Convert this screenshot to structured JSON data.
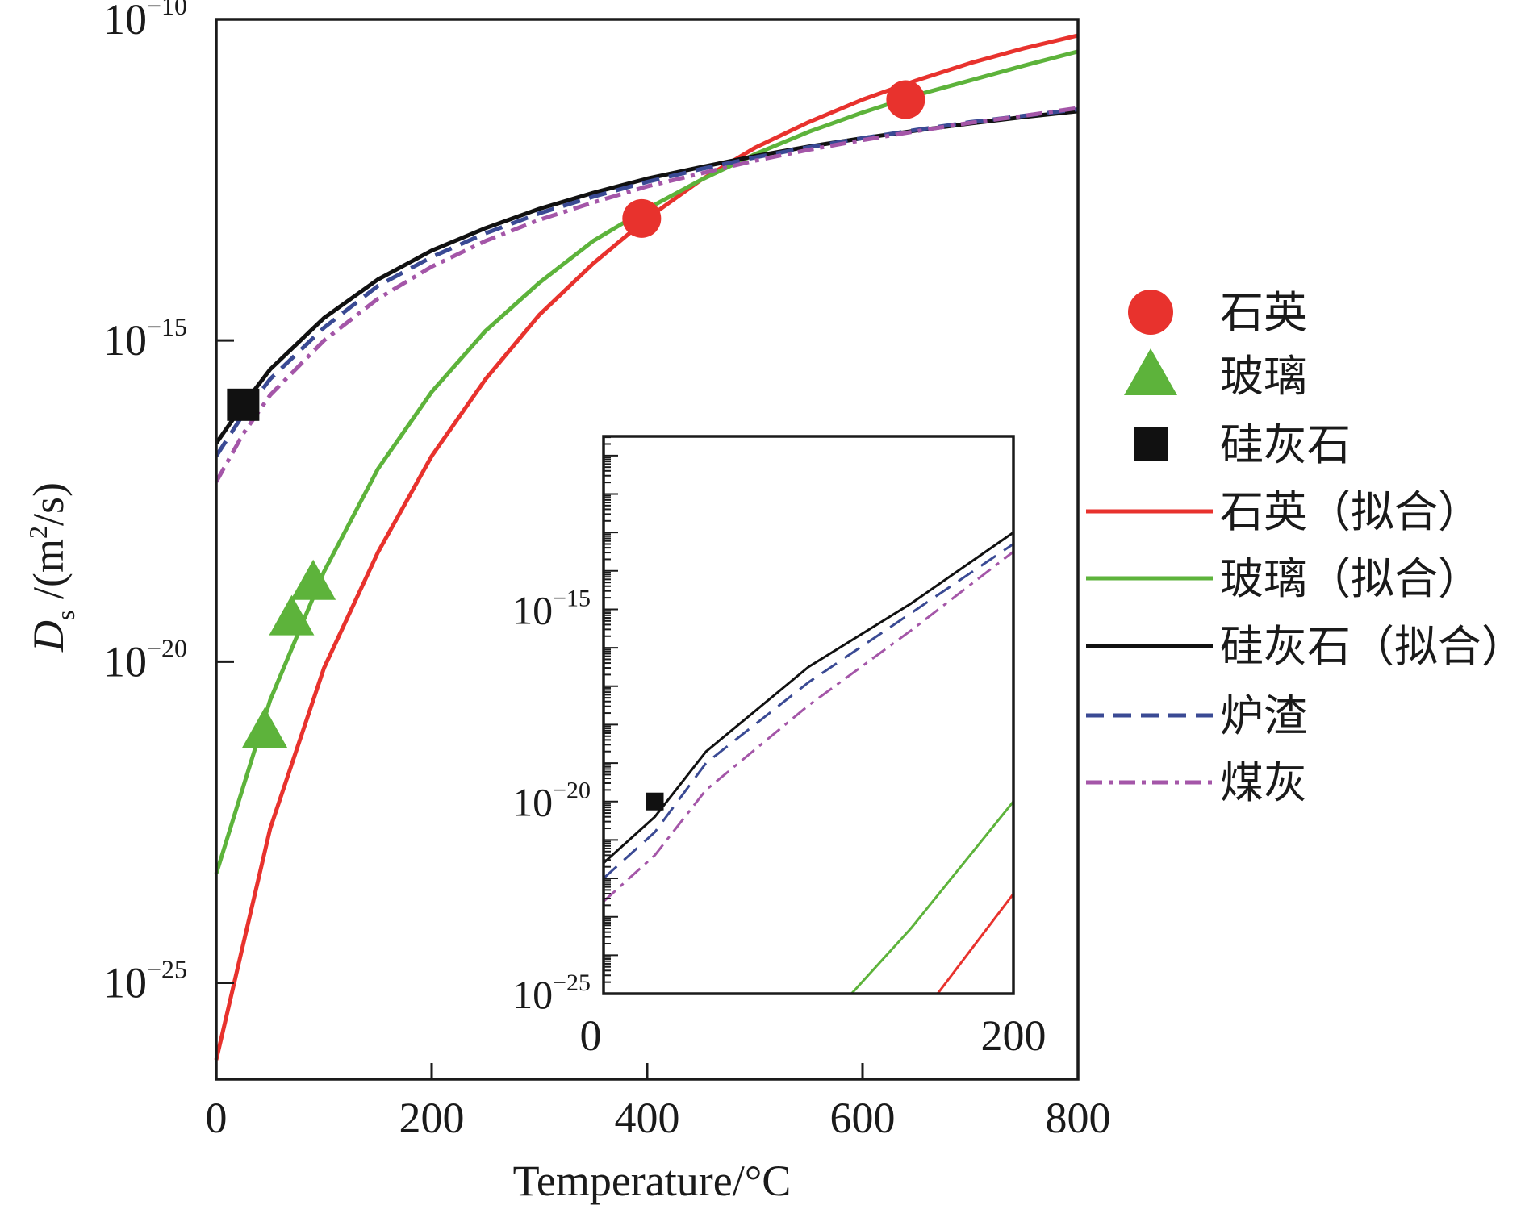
{
  "chart_data": [
    {
      "id": "main",
      "type": "line",
      "xlabel": "Temperature/°C",
      "ylabel_symbol": "D",
      "ylabel_subscript": "s",
      "ylabel_unit_prefix": " /(m",
      "ylabel_unit_sup": "2",
      "ylabel_unit_suffix": "/s)",
      "y_scale": "log",
      "xlim": [
        0,
        800
      ],
      "ylim_exp": [
        -26.5,
        -10
      ],
      "xticks": [
        0,
        200,
        400,
        600,
        800
      ],
      "xtick_labels": [
        "0",
        "200",
        "400",
        "600",
        "800"
      ],
      "yticks_exp": [
        -25,
        -20,
        -15,
        -10
      ],
      "ytick_base": "10",
      "ytick_exps": [
        "−25",
        "−20",
        "−15",
        "−10"
      ],
      "series": [
        {
          "name": "石英（拟合）",
          "color": "#e8322d",
          "style": "solid",
          "x": [
            0,
            50,
            100,
            150,
            200,
            250,
            300,
            350,
            400,
            450,
            500,
            550,
            600,
            650,
            700,
            750,
            800
          ],
          "y_exp": [
            -26.2,
            -22.6,
            -20.1,
            -18.3,
            -16.8,
            -15.6,
            -14.6,
            -13.8,
            -13.1,
            -12.5,
            -12.0,
            -11.6,
            -11.25,
            -10.95,
            -10.68,
            -10.45,
            -10.25
          ]
        },
        {
          "name": "玻璃（拟合）",
          "color": "#5db33b",
          "style": "solid",
          "x": [
            0,
            50,
            100,
            150,
            200,
            250,
            300,
            350,
            400,
            450,
            500,
            550,
            600,
            650,
            700,
            750,
            800
          ],
          "y_exp": [
            -23.3,
            -20.6,
            -18.6,
            -17.0,
            -15.8,
            -14.85,
            -14.1,
            -13.45,
            -12.95,
            -12.5,
            -12.1,
            -11.75,
            -11.45,
            -11.18,
            -10.95,
            -10.72,
            -10.5
          ]
        },
        {
          "name": "硅灰石（拟合）",
          "color": "#111111",
          "style": "solid",
          "x": [
            0,
            25,
            50,
            100,
            150,
            200,
            250,
            300,
            350,
            400,
            450,
            500,
            550,
            600,
            650,
            700,
            750,
            800
          ],
          "y_exp": [
            -16.6,
            -16.0,
            -15.45,
            -14.65,
            -14.05,
            -13.6,
            -13.25,
            -12.95,
            -12.7,
            -12.48,
            -12.3,
            -12.13,
            -11.98,
            -11.85,
            -11.73,
            -11.62,
            -11.52,
            -11.43
          ]
        },
        {
          "name": "炉渣",
          "color": "#3a4a94",
          "style": "dash",
          "x": [
            0,
            25,
            50,
            100,
            150,
            200,
            250,
            300,
            350,
            400,
            450,
            500,
            550,
            600,
            650,
            700,
            750,
            800
          ],
          "y_exp": [
            -16.8,
            -16.15,
            -15.6,
            -14.8,
            -14.15,
            -13.7,
            -13.33,
            -13.02,
            -12.76,
            -12.53,
            -12.33,
            -12.15,
            -11.99,
            -11.85,
            -11.72,
            -11.6,
            -11.5,
            -11.4
          ]
        },
        {
          "name": "煤灰",
          "color": "#a456a8",
          "style": "dashdot",
          "x": [
            0,
            25,
            50,
            100,
            150,
            200,
            250,
            300,
            350,
            400,
            450,
            500,
            550,
            600,
            650,
            700,
            750,
            800
          ],
          "y_exp": [
            -17.2,
            -16.45,
            -15.85,
            -15.0,
            -14.35,
            -13.85,
            -13.45,
            -13.12,
            -12.85,
            -12.6,
            -12.4,
            -12.2,
            -12.03,
            -11.88,
            -11.74,
            -11.61,
            -11.5,
            -11.38
          ]
        }
      ],
      "markers": [
        {
          "name": "石英",
          "shape": "circle",
          "color": "#e8322d",
          "points": [
            {
              "x": 395,
              "y_exp": -13.1
            },
            {
              "x": 640,
              "y_exp": -11.25
            }
          ]
        },
        {
          "name": "玻璃",
          "shape": "triangle",
          "color": "#5db33b",
          "points": [
            {
              "x": 45,
              "y_exp": -21.1
            },
            {
              "x": 70,
              "y_exp": -19.35
            },
            {
              "x": 90,
              "y_exp": -18.8
            }
          ]
        },
        {
          "name": "硅灰石",
          "shape": "square",
          "color": "#111111",
          "points": [
            {
              "x": 25,
              "y_exp": -16.0
            }
          ]
        }
      ]
    },
    {
      "id": "inset",
      "type": "line",
      "y_scale": "log",
      "xlim": [
        0,
        200
      ],
      "ylim_exp": [
        -25,
        -10.5
      ],
      "xtick_labels": [
        "0",
        "200"
      ],
      "xticks": [
        0,
        200
      ],
      "yticks_exp": [
        -25,
        -20,
        -15
      ],
      "ytick_base": "10",
      "ytick_exps": [
        "−25",
        "−20",
        "−15"
      ],
      "series": [
        {
          "name": "硅灰石（拟合）",
          "color": "#111111",
          "style": "solid",
          "x": [
            0,
            25,
            50,
            100,
            150,
            200
          ],
          "y_exp": [
            -21.6,
            -20.4,
            -18.7,
            -16.5,
            -14.85,
            -13.0
          ]
        },
        {
          "name": "炉渣",
          "color": "#3a4a94",
          "style": "dash",
          "x": [
            0,
            25,
            50,
            100,
            150,
            200
          ],
          "y_exp": [
            -22.0,
            -20.8,
            -19.0,
            -16.9,
            -15.1,
            -13.3
          ]
        },
        {
          "name": "煤灰",
          "color": "#a456a8",
          "style": "dashdot",
          "x": [
            0,
            25,
            50,
            100,
            150,
            200
          ],
          "y_exp": [
            -22.6,
            -21.4,
            -19.7,
            -17.5,
            -15.55,
            -13.5
          ]
        },
        {
          "name": "玻璃（拟合）",
          "color": "#5db33b",
          "style": "solid",
          "x": [
            121,
            150,
            200
          ],
          "y_exp": [
            -25.0,
            -23.3,
            -20.0
          ]
        },
        {
          "name": "石英（拟合）",
          "color": "#e8322d",
          "style": "solid",
          "x": [
            163,
            200
          ],
          "y_exp": [
            -25.0,
            -22.4
          ]
        }
      ],
      "markers": [
        {
          "name": "硅灰石",
          "shape": "square",
          "color": "#111111",
          "points": [
            {
              "x": 25,
              "y_exp": -20.0
            }
          ]
        }
      ]
    }
  ],
  "legend": {
    "position": "right",
    "items": [
      {
        "label": "石英",
        "kind": "marker",
        "shape": "circle",
        "color": "#e8322d"
      },
      {
        "label": "玻璃",
        "kind": "marker",
        "shape": "triangle",
        "color": "#5db33b"
      },
      {
        "label": "硅灰石",
        "kind": "marker",
        "shape": "square",
        "color": "#111111"
      },
      {
        "label": "石英（拟合）",
        "kind": "line",
        "style": "solid",
        "color": "#e8322d"
      },
      {
        "label": "玻璃（拟合）",
        "kind": "line",
        "style": "solid",
        "color": "#5db33b"
      },
      {
        "label": "硅灰石（拟合）",
        "kind": "line",
        "style": "solid",
        "color": "#111111"
      },
      {
        "label": "炉渣",
        "kind": "line",
        "style": "dash",
        "color": "#3a4a94"
      },
      {
        "label": "煤灰",
        "kind": "line",
        "style": "dashdot",
        "color": "#a456a8"
      }
    ]
  }
}
